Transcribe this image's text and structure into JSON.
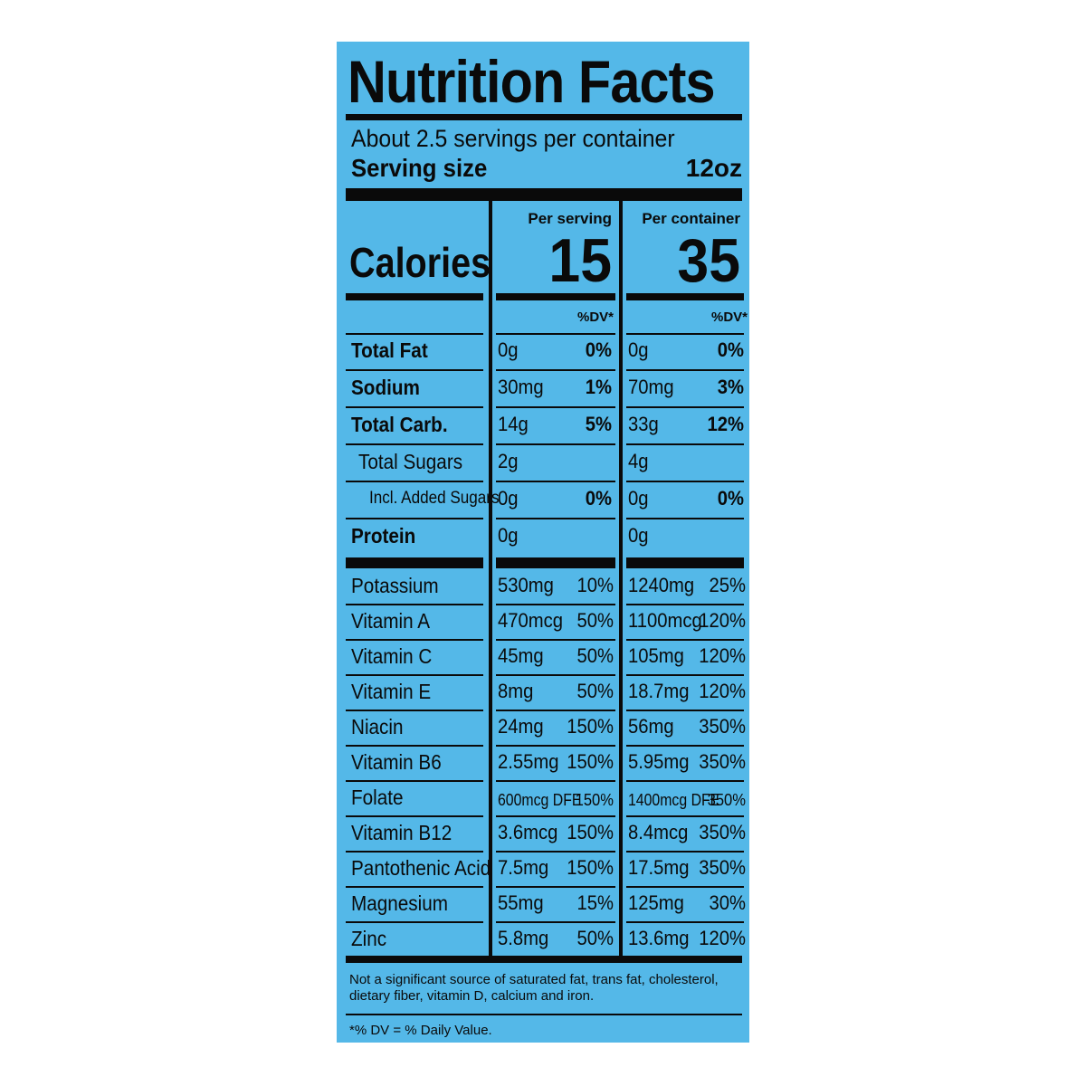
{
  "label": {
    "title": "Nutrition Facts",
    "servings": "About 2.5 servings per container",
    "serving_size_label": "Serving size",
    "serving_size_value": "12oz",
    "calories_label": "Calories",
    "per_serving_head": "Per serving",
    "per_container_head": "Per container",
    "calories_serving": "15",
    "calories_container": "35",
    "dv_head": "%DV*",
    "footnote": "Not a significant source of saturated fat, trans fat, cholesterol, dietary fiber, vitamin D, calcium and iron.",
    "dv_note": "*% DV = % Daily Value.",
    "background_color": "#54b8e8"
  },
  "nutrients": [
    {
      "name": "Total Fat",
      "serving_amount": "0g",
      "serving_dv": "0%",
      "container_amount": "0g",
      "container_dv": "0%"
    },
    {
      "name": "Sodium",
      "serving_amount": "30mg",
      "serving_dv": "1%",
      "container_amount": "70mg",
      "container_dv": "3%"
    },
    {
      "name": "Total Carb.",
      "serving_amount": "14g",
      "serving_dv": "5%",
      "container_amount": "33g",
      "container_dv": "12%"
    },
    {
      "name": "Total Sugars",
      "serving_amount": "2g",
      "serving_dv": "",
      "container_amount": "4g",
      "container_dv": ""
    },
    {
      "name": "Incl. Added Sugars",
      "serving_amount": "0g",
      "serving_dv": "0%",
      "container_amount": "0g",
      "container_dv": "0%"
    },
    {
      "name": "Protein",
      "serving_amount": "0g",
      "serving_dv": "",
      "container_amount": "0g",
      "container_dv": ""
    }
  ],
  "vitamins": [
    {
      "name": "Potassium",
      "serving_amount": "530mg",
      "serving_dv": "10%",
      "container_amount": "1240mg",
      "container_dv": "25%"
    },
    {
      "name": "Vitamin A",
      "serving_amount": "470mcg",
      "serving_dv": "50%",
      "container_amount": "1100mcg",
      "container_dv": "120%"
    },
    {
      "name": "Vitamin C",
      "serving_amount": "45mg",
      "serving_dv": "50%",
      "container_amount": "105mg",
      "container_dv": "120%"
    },
    {
      "name": "Vitamin E",
      "serving_amount": "8mg",
      "serving_dv": "50%",
      "container_amount": "18.7mg",
      "container_dv": "120%"
    },
    {
      "name": "Niacin",
      "serving_amount": "24mg",
      "serving_dv": "150%",
      "container_amount": "56mg",
      "container_dv": "350%"
    },
    {
      "name": "Vitamin B6",
      "serving_amount": "2.55mg",
      "serving_dv": "150%",
      "container_amount": "5.95mg",
      "container_dv": "350%"
    },
    {
      "name": "Folate",
      "serving_amount": "600mcg DFE",
      "serving_dv": "150%",
      "container_amount": "1400mcg DFE",
      "container_dv": "350%"
    },
    {
      "name": "Vitamin B12",
      "serving_amount": "3.6mcg",
      "serving_dv": "150%",
      "container_amount": "8.4mcg",
      "container_dv": "350%"
    },
    {
      "name": "Pantothenic Acid",
      "serving_amount": "7.5mg",
      "serving_dv": "150%",
      "container_amount": "17.5mg",
      "container_dv": "350%"
    },
    {
      "name": "Magnesium",
      "serving_amount": "55mg",
      "serving_dv": "15%",
      "container_amount": "125mg",
      "container_dv": "30%"
    },
    {
      "name": "Zinc",
      "serving_amount": "5.8mg",
      "serving_dv": "50%",
      "container_amount": "13.6mg",
      "container_dv": "120%"
    }
  ]
}
